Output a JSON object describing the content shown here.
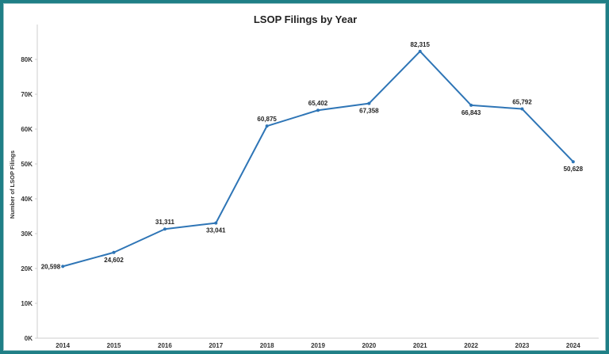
{
  "chart_data": {
    "type": "line",
    "title": "LSOP Filings by Year",
    "ylabel": "Number of LSOP Filings",
    "xlabel": "",
    "x": [
      "2014",
      "2015",
      "2016",
      "2017",
      "2018",
      "2019",
      "2020",
      "2021",
      "2022",
      "2023",
      "2024"
    ],
    "values": [
      20598,
      24602,
      31311,
      33041,
      60875,
      65402,
      67358,
      82315,
      66843,
      65792,
      50628
    ],
    "data_labels": [
      "20,598",
      "24,602",
      "31,311",
      "33,041",
      "60,875",
      "65,402",
      "67,358",
      "82,315",
      "66,843",
      "65,792",
      "50,628"
    ],
    "ylim": [
      0,
      90000
    ],
    "y_ticks": [
      0,
      10000,
      20000,
      30000,
      40000,
      50000,
      60000,
      70000,
      80000
    ],
    "y_tick_labels": [
      "0K",
      "10K",
      "20K",
      "30K",
      "40K",
      "50K",
      "60K",
      "70K",
      "80K"
    ],
    "grid": false,
    "line_color": "#2e75b6",
    "frame_color": "#1f7f86"
  }
}
